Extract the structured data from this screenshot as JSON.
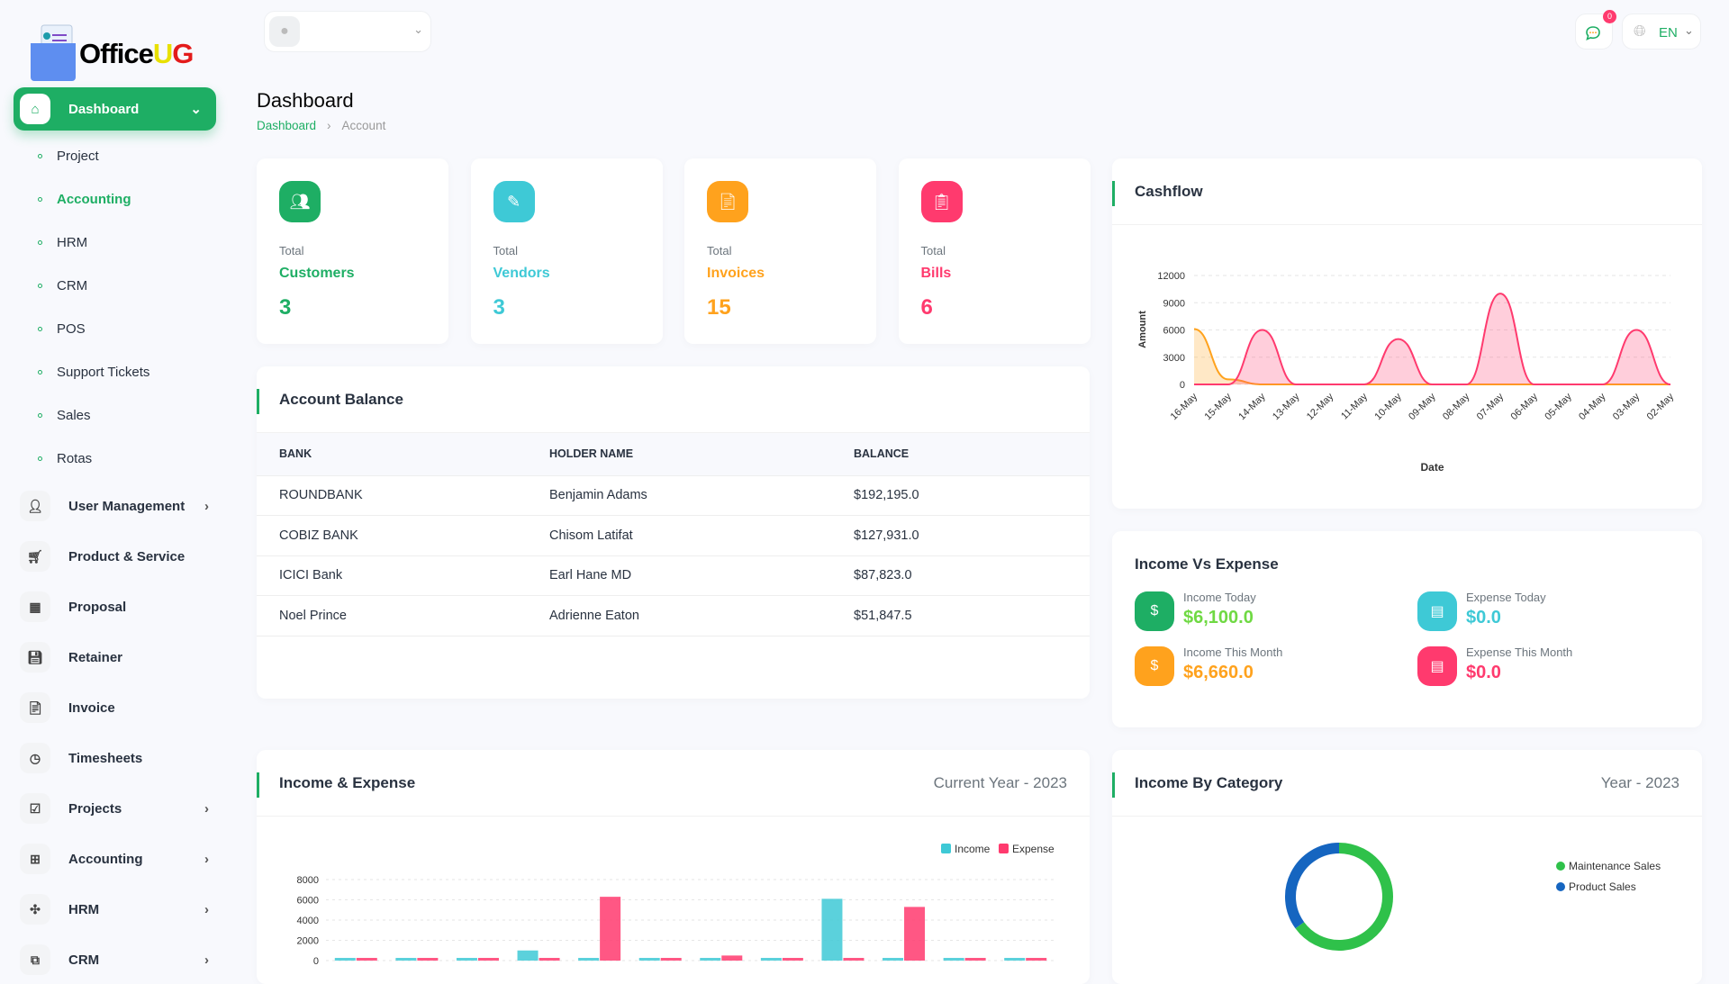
{
  "brand": {
    "name_part1": "Office",
    "name_part2": "UG"
  },
  "header": {
    "user_name": "",
    "notifications_count": "0",
    "language": "EN"
  },
  "sidebar": {
    "active": {
      "label": "Dashboard"
    },
    "sub_items": [
      {
        "label": "Project"
      },
      {
        "label": "Accounting"
      },
      {
        "label": "HRM"
      },
      {
        "label": "CRM"
      },
      {
        "label": "POS"
      },
      {
        "label": "Support Tickets"
      },
      {
        "label": "Sales"
      },
      {
        "label": "Rotas"
      }
    ],
    "items": [
      {
        "label": "User Management",
        "has_children": true
      },
      {
        "label": "Product & Service",
        "has_children": false
      },
      {
        "label": "Proposal",
        "has_children": false
      },
      {
        "label": "Retainer",
        "has_children": false
      },
      {
        "label": "Invoice",
        "has_children": false
      },
      {
        "label": "Timesheets",
        "has_children": false
      },
      {
        "label": "Projects",
        "has_children": true
      },
      {
        "label": "Accounting",
        "has_children": true
      },
      {
        "label": "HRM",
        "has_children": true
      },
      {
        "label": "CRM",
        "has_children": true
      }
    ]
  },
  "page": {
    "title": "Dashboard",
    "breadcrumb": [
      "Dashboard",
      "Account"
    ]
  },
  "stats": [
    {
      "label": "Total",
      "name": "Customers",
      "value": "3",
      "color": "#1eae64"
    },
    {
      "label": "Total",
      "name": "Vendors",
      "value": "3",
      "color": "#3ec9d6"
    },
    {
      "label": "Total",
      "name": "Invoices",
      "value": "15",
      "color": "#ffa21d"
    },
    {
      "label": "Total",
      "name": "Bills",
      "value": "6",
      "color": "#ff3a6e"
    }
  ],
  "account_balance": {
    "title": "Account Balance",
    "columns": [
      "BANK",
      "HOLDER NAME",
      "BALANCE"
    ],
    "rows": [
      [
        "ROUNDBANK",
        "Benjamin Adams",
        "$192,195.0"
      ],
      [
        "COBIZ BANK",
        "Chisom Latifat",
        "$127,931.0"
      ],
      [
        "ICICI Bank",
        "Earl Hane MD",
        "$87,823.0"
      ],
      [
        "Noel Prince",
        "Adrienne Eaton",
        "$51,847.5"
      ]
    ]
  },
  "income_vs_expense": {
    "title": "Income Vs Expense",
    "items": [
      {
        "label": "Income Today",
        "value": "$6,100.0",
        "color": "#1eae64",
        "value_color": "#6fd943"
      },
      {
        "label": "Expense Today",
        "value": "$0.0",
        "color": "#3ec9d6",
        "value_color": "#3ec9d6"
      },
      {
        "label": "Income This Month",
        "value": "$6,660.0",
        "color": "#ffa21d",
        "value_color": "#ffa21d"
      },
      {
        "label": "Expense This Month",
        "value": "$0.0",
        "color": "#ff3a6e",
        "value_color": "#ff3a6e"
      }
    ]
  },
  "chart_data": [
    {
      "type": "area",
      "title": "Cashflow",
      "xlabel": "Date",
      "ylabel": "Amount",
      "ylim": [
        0,
        12000
      ],
      "yticks": [
        0,
        3000,
        6000,
        9000,
        12000
      ],
      "grid": true,
      "x": [
        "16-May",
        "15-May",
        "14-May",
        "13-May",
        "12-May",
        "11-May",
        "10-May",
        "09-May",
        "08-May",
        "07-May",
        "06-May",
        "05-May",
        "04-May",
        "03-May",
        "02-May"
      ],
      "series": [
        {
          "color": "#ffa21d",
          "values": [
            6100,
            560,
            0,
            0,
            0,
            0,
            0,
            0,
            0,
            0,
            0,
            0,
            0,
            0,
            0
          ]
        },
        {
          "color": "#ff3a6e",
          "values": [
            0,
            0,
            6000,
            0,
            0,
            0,
            5000,
            0,
            0,
            10000,
            0,
            0,
            0,
            6000,
            0
          ]
        }
      ]
    },
    {
      "type": "bar",
      "title": "Income & Expense",
      "subtitle": "Current Year - 2023",
      "ylim": [
        0,
        8000
      ],
      "yticks": [
        0,
        2000,
        4000,
        6000,
        8000
      ],
      "grid": true,
      "legend": "top-right",
      "series": [
        {
          "name": "Income",
          "color": "#3ec9d6",
          "values": [
            150,
            0,
            0,
            1000,
            0,
            0,
            150,
            0,
            6100,
            0,
            0,
            0
          ]
        },
        {
          "name": "Expense",
          "color": "#ff3a6e",
          "values": [
            0,
            0,
            0,
            0,
            6300,
            0,
            500,
            0,
            0,
            5300,
            0,
            0
          ]
        }
      ]
    },
    {
      "type": "pie",
      "title": "Income By Category",
      "subtitle": "Year - 2023",
      "legend": "right",
      "labels": [
        "Maintenance Sales",
        "Product Sales"
      ],
      "values": [
        65,
        35
      ],
      "colors": [
        "#2fc14a",
        "#1565c0"
      ]
    }
  ]
}
